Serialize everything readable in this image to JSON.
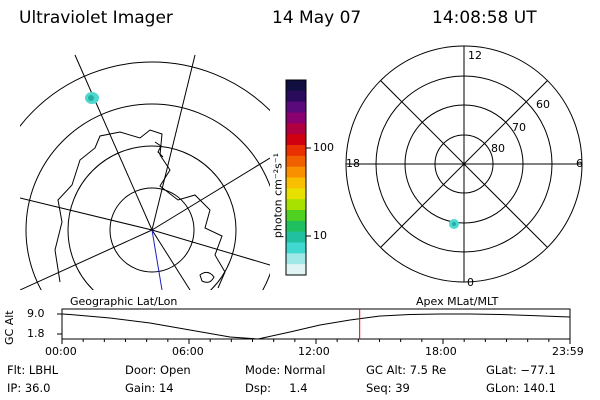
{
  "header": {
    "instrument": "Ultraviolet Imager",
    "date": "14 May 07",
    "time": "14:08:58 UT"
  },
  "colorbar": {
    "label": "photon cm⁻²s⁻¹",
    "ticks": [
      "100",
      "10"
    ],
    "colors": [
      "#101040",
      "#2a0a5a",
      "#5a0a7a",
      "#8a0070",
      "#b00040",
      "#d00010",
      "#e83000",
      "#f06000",
      "#f89000",
      "#f8c000",
      "#e8e000",
      "#a8e000",
      "#50d020",
      "#20c060",
      "#20c0a0",
      "#40d8d0",
      "#a0e8e8",
      "#e0f4f4"
    ]
  },
  "left_panel": {
    "caption": "Geographic Lat/Lon",
    "projection_center_note": "south geographic pole (Antarctica)"
  },
  "right_panel": {
    "caption": "Apex MLat/MLT",
    "lat_labels": [
      "60",
      "70",
      "80"
    ],
    "mlt_labels": {
      "top": "12",
      "left": "18",
      "right": "6",
      "bottom": "0"
    }
  },
  "timeline": {
    "ylabel": "GC Alt",
    "ymax": "9.0",
    "ymin": "1.8",
    "xticks": [
      "00:00",
      "06:00",
      "12:00",
      "18:00",
      "23:59"
    ],
    "current_time_fraction": 0.586,
    "marker_color": "#e00000"
  },
  "info": {
    "row1": [
      "Flt: LBHL",
      "Door: Open",
      "Mode: Normal",
      "GC Alt: 7.5 Re",
      "GLat: −77.1"
    ],
    "row2": [
      "IP: 36.0",
      "Gain: 14",
      "Dsp:     1.4",
      "Seq: 39",
      "GLon: 140.1"
    ]
  }
}
